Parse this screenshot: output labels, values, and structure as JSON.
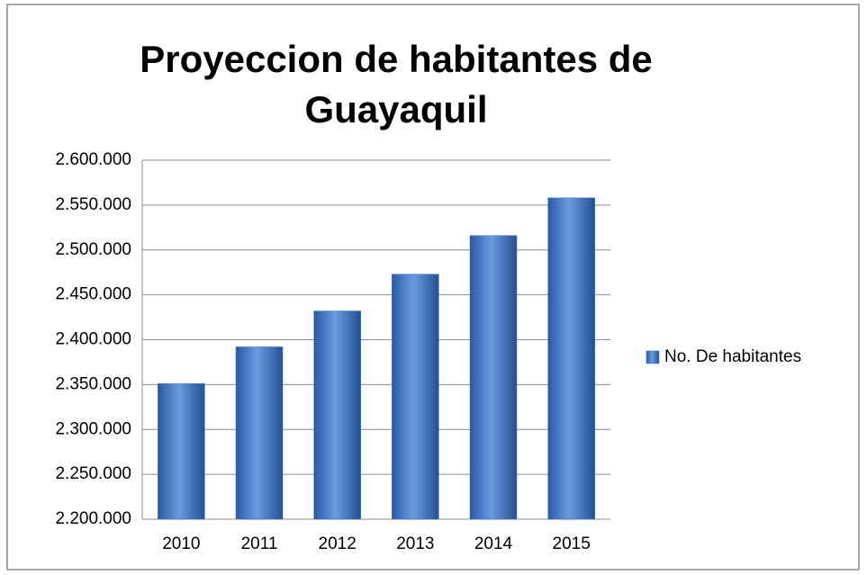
{
  "chart_data": {
    "type": "bar",
    "title": "Proyeccion de habitantes de Guayaquil",
    "categories": [
      "2010",
      "2011",
      "2012",
      "2013",
      "2014",
      "2015"
    ],
    "series": [
      {
        "name": "No. De habitantes",
        "color": "#3a6fbf",
        "values": [
          2351000,
          2392000,
          2432000,
          2473000,
          2516000,
          2558000
        ]
      }
    ],
    "ylim": [
      2200000,
      2600000
    ],
    "yticks": [
      {
        "value": 2200000,
        "label": "2.200.000"
      },
      {
        "value": 2250000,
        "label": "2.250.000"
      },
      {
        "value": 2300000,
        "label": "2.300.000"
      },
      {
        "value": 2350000,
        "label": "2.350.000"
      },
      {
        "value": 2400000,
        "label": "2.400.000"
      },
      {
        "value": 2450000,
        "label": "2.450.000"
      },
      {
        "value": 2500000,
        "label": "2.500.000"
      },
      {
        "value": 2550000,
        "label": "2.550.000"
      },
      {
        "value": 2600000,
        "label": "2.600.000"
      }
    ],
    "grid": true,
    "legend": "right"
  }
}
